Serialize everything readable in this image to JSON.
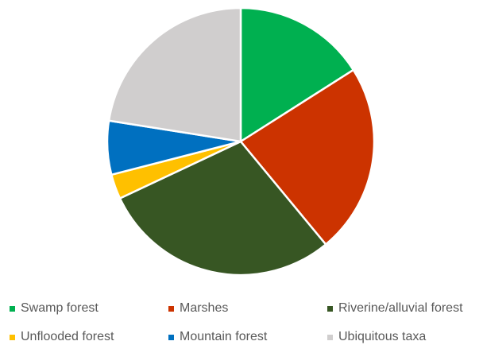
{
  "chart_data": {
    "type": "pie",
    "title": "",
    "series": [
      {
        "values": [
          16,
          23,
          29,
          3,
          6.5,
          22.5
        ]
      }
    ],
    "categories": [
      "Swamp forest",
      "Marshes",
      "Riverine/alluvial forest",
      "Unflooded forest",
      "Mountain forest",
      "Ubiquitous taxa"
    ],
    "colors": [
      "#00b050",
      "#cc3300",
      "#375623",
      "#ffc000",
      "#0070c0",
      "#d0cece"
    ],
    "legend_position": "bottom",
    "start_angle": "12 o'clock, clockwise"
  }
}
